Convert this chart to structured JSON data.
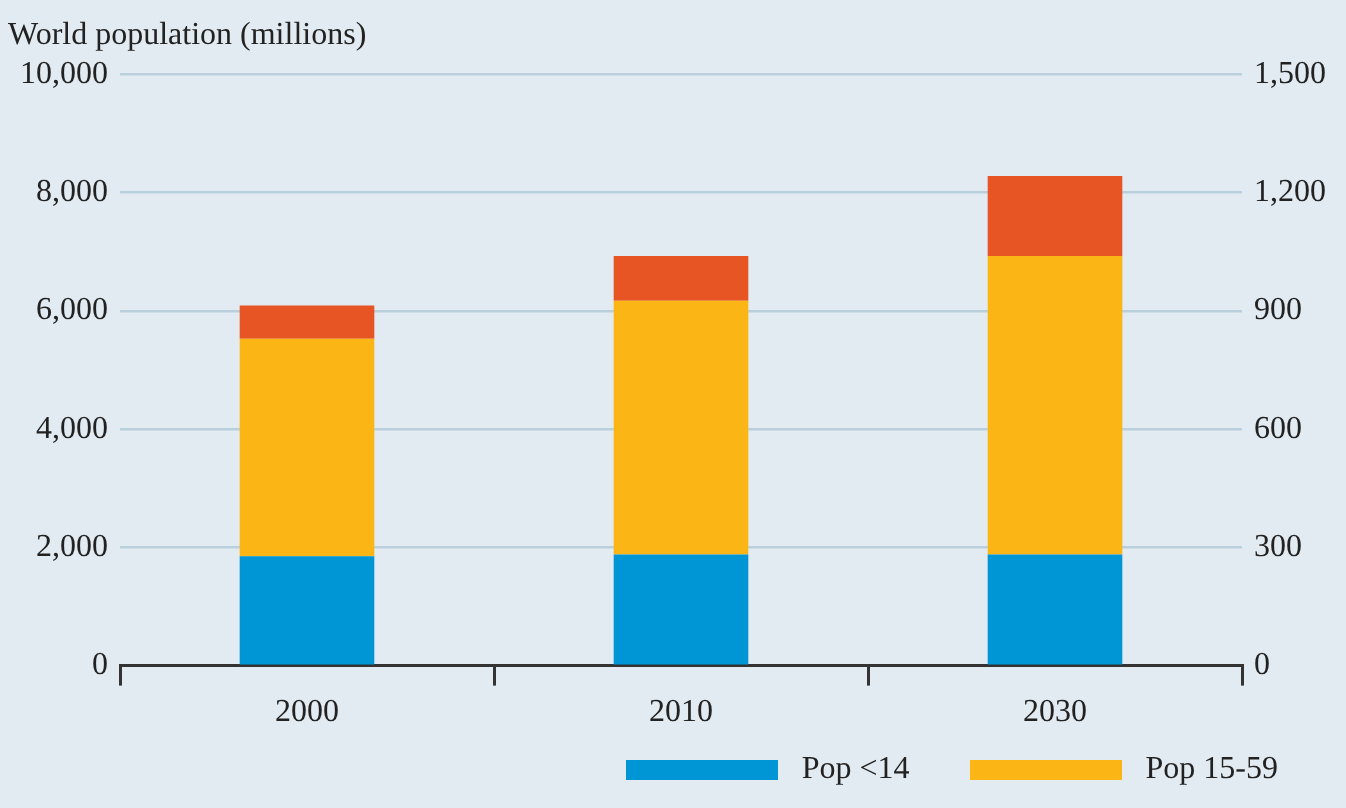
{
  "chart_data": {
    "type": "bar",
    "title": "World population (millions)",
    "categories": [
      "2000",
      "2010",
      "2030"
    ],
    "stacked": true,
    "series": [
      {
        "name": "Pop <14",
        "color": "#0096d6",
        "values": [
          1850,
          1880,
          1880
        ]
      },
      {
        "name": "Pop 15-59",
        "color": "#fbb615",
        "values": [
          3680,
          4290,
          5050
        ]
      },
      {
        "color": "#e85525",
        "values": [
          560,
          760,
          1350
        ]
      }
    ],
    "ylim": [
      0,
      10000
    ],
    "yticks": [
      {
        "value": 0,
        "label": "0"
      },
      {
        "value": 2000,
        "label": "2,000"
      },
      {
        "value": 4000,
        "label": "4,000"
      },
      {
        "value": 6000,
        "label": "6,000"
      },
      {
        "value": 8000,
        "label": "8,000"
      },
      {
        "value": 10000,
        "label": "10,000"
      }
    ],
    "y2lim": [
      0,
      1500
    ],
    "y2ticks": [
      {
        "value": 0,
        "label": "0"
      },
      {
        "value": 300,
        "label": "300"
      },
      {
        "value": 600,
        "label": "600"
      },
      {
        "value": 900,
        "label": "900"
      },
      {
        "value": 1200,
        "label": "1,200"
      },
      {
        "value": 1500,
        "label": "1,500"
      }
    ],
    "grid": "y",
    "legend": "bottom right"
  }
}
